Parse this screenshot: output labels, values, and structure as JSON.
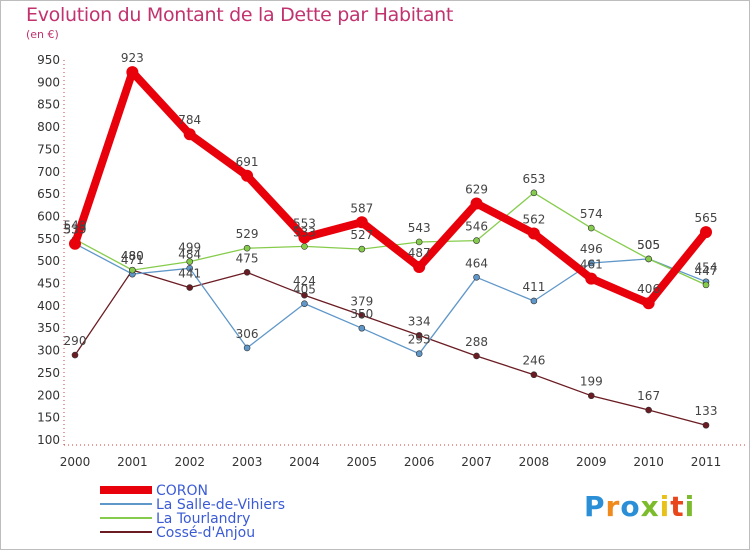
{
  "title": "Evolution du Montant de la Dette par Habitant",
  "unit": "(en €)",
  "logo": {
    "text": "Proxiti",
    "letters": [
      "P",
      "r",
      "o",
      "x",
      "i",
      "t",
      "i"
    ],
    "colors": [
      "#2a8fd6",
      "#f08a1c",
      "#2a8fd6",
      "#7cbc2c",
      "#e8c21a",
      "#e8471d",
      "#7cbc2c"
    ]
  },
  "chart_data": {
    "type": "line",
    "title": "Evolution du Montant de la Dette par Habitant",
    "ylabel": "(en €)",
    "xlabel": "",
    "x": [
      "2000",
      "2001",
      "2002",
      "2003",
      "2004",
      "2005",
      "2006",
      "2007",
      "2008",
      "2009",
      "2010",
      "2011"
    ],
    "ylim": [
      100,
      950
    ],
    "yticks": [
      100,
      150,
      200,
      250,
      300,
      350,
      400,
      450,
      500,
      550,
      600,
      650,
      700,
      750,
      800,
      850,
      900,
      950
    ],
    "grid": false,
    "legend_position": "bottom-left",
    "series": [
      {
        "name": "CORON",
        "color": "#e8000b",
        "width": 8,
        "marker": 6,
        "values": [
          539,
          923,
          784,
          691,
          553,
          587,
          487,
          629,
          562,
          461,
          406,
          565
        ],
        "labels": [
          "539",
          "923",
          "784",
          "691",
          "553",
          "587",
          "487",
          "629",
          "562",
          "461",
          "406",
          "565"
        ]
      },
      {
        "name": "La Salle-de-Vihiers",
        "color": "#5f97c9",
        "width": 1.3,
        "marker": 3,
        "values": [
          539,
          471,
          484,
          306,
          405,
          350,
          293,
          464,
          411,
          496,
          505,
          454
        ],
        "labels": [
          "539",
          "471",
          "484",
          "306",
          "405",
          "350",
          "293",
          "464",
          "411",
          "496",
          "505",
          "454"
        ]
      },
      {
        "name": "La Tourlandry",
        "color": "#86cc4c",
        "width": 1.3,
        "marker": 3,
        "values": [
          549,
          480,
          499,
          529,
          533,
          527,
          543,
          546,
          653,
          574,
          505,
          447
        ],
        "labels": [
          "549",
          "480",
          "499",
          "529",
          "533",
          "527",
          "543",
          "546",
          "653",
          "574",
          "505",
          "447"
        ]
      },
      {
        "name": "Cossé-d'Anjou",
        "color": "#6b1c23",
        "width": 1.3,
        "marker": 3,
        "values": [
          290,
          480,
          441,
          475,
          424,
          379,
          334,
          288,
          246,
          199,
          167,
          133
        ],
        "labels": [
          "290",
          "480",
          "441",
          "475",
          "424",
          "379",
          "334",
          "288",
          "246",
          "199",
          "167",
          "133"
        ]
      }
    ]
  }
}
